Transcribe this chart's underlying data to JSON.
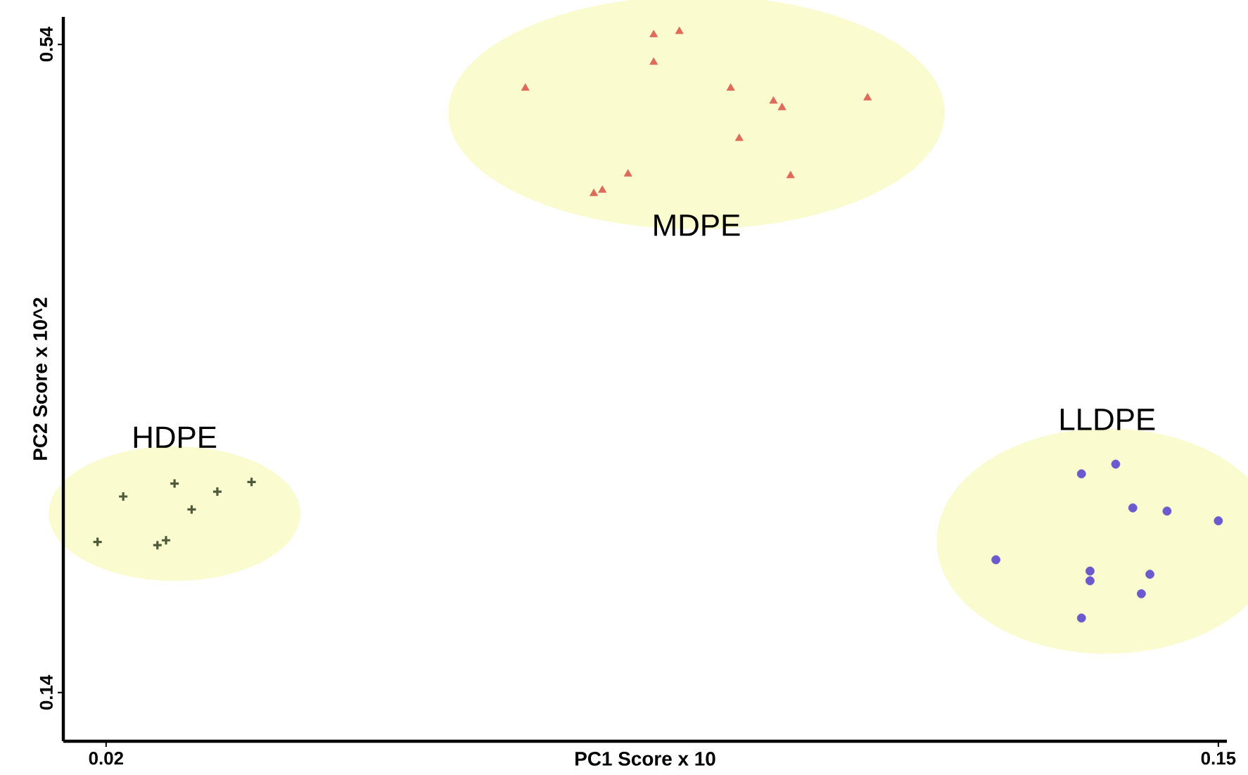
{
  "chart_data": {
    "type": "scatter",
    "xlabel": "PC1 Score x 10",
    "ylabel": "PC2 Score x 10^2",
    "xlim": [
      0.015,
      0.151
    ],
    "ylim": [
      0.11,
      0.557
    ],
    "xticks": [
      0.02,
      0.15
    ],
    "yticks": [
      0.14,
      0.54
    ],
    "grid": false,
    "series": [
      {
        "name": "HDPE",
        "color": "#4f5a3a",
        "marker": "cross",
        "x": [
          0.019,
          0.022,
          0.028,
          0.03,
          0.033,
          0.037,
          0.026,
          0.027
        ],
        "values": [
          0.233,
          0.261,
          0.269,
          0.253,
          0.264,
          0.27,
          0.231,
          0.234
        ]
      },
      {
        "name": "MDPE",
        "color": "#e06a5a",
        "marker": "triangle",
        "x": [
          0.069,
          0.084,
          0.087,
          0.084,
          0.093,
          0.098,
          0.099,
          0.109,
          0.094,
          0.081,
          0.078,
          0.077,
          0.1
        ],
        "values": [
          0.513,
          0.546,
          0.548,
          0.529,
          0.513,
          0.505,
          0.501,
          0.507,
          0.482,
          0.46,
          0.45,
          0.448,
          0.459
        ]
      },
      {
        "name": "LLDPE",
        "color": "#6a5acd",
        "marker": "circle",
        "x": [
          0.134,
          0.138,
          0.14,
          0.144,
          0.15,
          0.124,
          0.135,
          0.135,
          0.142,
          0.141,
          0.134
        ],
        "values": [
          0.275,
          0.281,
          0.254,
          0.252,
          0.246,
          0.222,
          0.215,
          0.209,
          0.213,
          0.201,
          0.186
        ]
      }
    ]
  }
}
